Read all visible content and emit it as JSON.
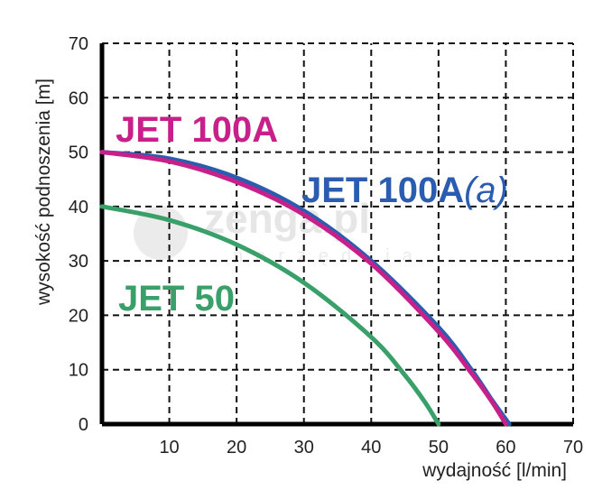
{
  "chart_data": {
    "type": "line",
    "xlabel": "wydajność [l/min]",
    "ylabel": "wysokość podnoszenia [m]",
    "xlim": [
      0,
      70
    ],
    "ylim": [
      0,
      70
    ],
    "x_ticks": [
      "10",
      "20",
      "30",
      "40",
      "50",
      "60",
      "70"
    ],
    "y_ticks": [
      "0",
      "10",
      "20",
      "30",
      "40",
      "50",
      "60",
      "70"
    ],
    "grid": true,
    "series": [
      {
        "name": "JET 100A(a)",
        "color": "#2a5db0",
        "points": [
          [
            0,
            50
          ],
          [
            10,
            48.8
          ],
          [
            20,
            45.3
          ],
          [
            30,
            39.2
          ],
          [
            40,
            30
          ],
          [
            50,
            17.8
          ],
          [
            55,
            9.8
          ],
          [
            58,
            4.3
          ],
          [
            60.5,
            0
          ]
        ]
      },
      {
        "name": "JET 100A",
        "color": "#c8208a",
        "points": [
          [
            0,
            50
          ],
          [
            10,
            48.3
          ],
          [
            20,
            44.5
          ],
          [
            30,
            38.5
          ],
          [
            40,
            29.5
          ],
          [
            50,
            17
          ],
          [
            55,
            9.2
          ],
          [
            58,
            4
          ],
          [
            60,
            0
          ]
        ]
      },
      {
        "name": "JET 50",
        "color": "#3aa06a",
        "points": [
          [
            0,
            40
          ],
          [
            10,
            37.5
          ],
          [
            20,
            33
          ],
          [
            30,
            26
          ],
          [
            40,
            16
          ],
          [
            45,
            9
          ],
          [
            48,
            4
          ],
          [
            50,
            0
          ]
        ]
      }
    ],
    "series_labels": [
      {
        "text": "JET 100A",
        "color": "#c8208a"
      },
      {
        "text": "JET 100A",
        "suffix": "(a)",
        "color": "#2a5db0"
      },
      {
        "text": "JET 50",
        "color": "#3aa06a"
      }
    ],
    "watermark": {
      "text": "zenga.pl",
      "sub": "narzędzia"
    }
  }
}
